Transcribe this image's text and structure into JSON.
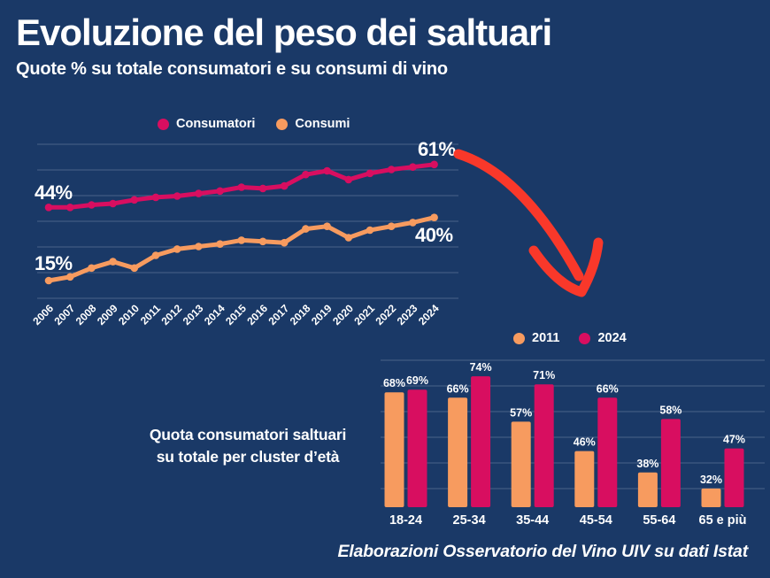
{
  "header": {
    "title": "Evoluzione del peso dei saltuari",
    "subtitle": "Quote % su totale consumatori e su consumi di vino"
  },
  "footer": {
    "text": "Elaborazioni Osservatorio del Vino UIV su dati Istat"
  },
  "colors": {
    "background": "#1a3967",
    "consumatori": "#d80e60",
    "consumi": "#f79b5f",
    "arrow": "#f9382a",
    "text": "#ffffff"
  },
  "chart_data": [
    {
      "id": "line",
      "type": "line",
      "x": [
        2006,
        2007,
        2008,
        2009,
        2010,
        2011,
        2012,
        2013,
        2014,
        2015,
        2016,
        2017,
        2018,
        2019,
        2020,
        2021,
        2022,
        2023,
        2024
      ],
      "series": [
        {
          "name": "Consumatori",
          "color_key": "consumatori",
          "values": [
            44,
            44,
            45,
            45.5,
            47,
            48,
            48.5,
            49.5,
            50.5,
            52,
            51.5,
            52.5,
            57,
            58.5,
            55,
            57.5,
            59,
            60,
            61
          ]
        },
        {
          "name": "Consumi",
          "color_key": "consumi",
          "values": [
            15,
            16.5,
            20,
            22.5,
            20,
            25,
            27.5,
            28.5,
            29.5,
            31,
            30.5,
            30,
            35.5,
            36.5,
            32,
            35,
            36.5,
            38,
            40
          ]
        }
      ],
      "annotations": [
        {
          "text": "44%",
          "series": "Consumatori",
          "position": "start"
        },
        {
          "text": "61%",
          "series": "Consumatori",
          "position": "end"
        },
        {
          "text": "15%",
          "series": "Consumi",
          "position": "start"
        },
        {
          "text": "40%",
          "series": "Consumi",
          "position": "end"
        }
      ],
      "ylim": [
        8,
        69
      ],
      "grid": true,
      "legend_position": "top"
    },
    {
      "id": "bars",
      "type": "bar",
      "title": "Quota consumatori saltuari su totale per cluster d’età",
      "title_lines": [
        "Quota consumatori saltuari",
        "su totale per cluster d’età"
      ],
      "categories": [
        "18-24",
        "25-34",
        "35-44",
        "45-54",
        "55-64",
        "65 e più"
      ],
      "series": [
        {
          "name": "2011",
          "color_key": "consumi",
          "values": [
            68,
            66,
            57,
            46,
            38,
            32
          ]
        },
        {
          "name": "2024",
          "color_key": "consumatori",
          "values": [
            69,
            74,
            71,
            66,
            58,
            47
          ]
        }
      ],
      "value_label_suffix": "%",
      "ylim": [
        25,
        80
      ],
      "grid": true,
      "legend_position": "top"
    }
  ]
}
